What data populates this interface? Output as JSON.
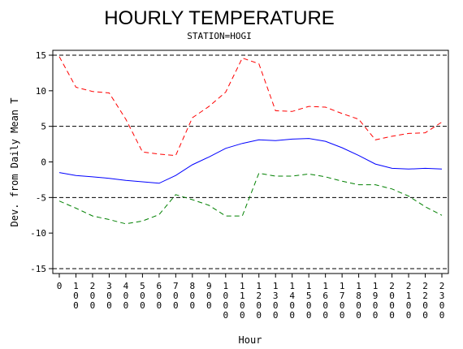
{
  "chart_data": {
    "type": "line",
    "title": "HOURLY TEMPERATURE",
    "subtitle": "STATION=HOGI",
    "xlabel": "Hour",
    "ylabel": "Dev. from Daily Mean T",
    "xlim": [
      0,
      2300
    ],
    "ylim": [
      -15,
      15
    ],
    "x": [
      0,
      100,
      200,
      300,
      400,
      500,
      600,
      700,
      800,
      900,
      1000,
      1100,
      1200,
      1300,
      1400,
      1500,
      1600,
      1700,
      1800,
      1900,
      2000,
      2100,
      2200,
      2300
    ],
    "x_tick_labels": [
      "0",
      "100",
      "200",
      "300",
      "400",
      "500",
      "600",
      "700",
      "800",
      "900",
      "1000",
      "1100",
      "1200",
      "1300",
      "1400",
      "1500",
      "1600",
      "1700",
      "1800",
      "1900",
      "2000",
      "2100",
      "2200",
      "2300"
    ],
    "y_ticks": [
      -15,
      -10,
      -5,
      0,
      5,
      10,
      15
    ],
    "y_tick_labels": [
      "-15",
      "-10",
      "-5",
      "0",
      "5",
      "10",
      "15"
    ],
    "reference_lines": [
      15,
      5,
      -5,
      -15
    ],
    "series": [
      {
        "color": "#ff0000",
        "style": "dashed",
        "values": [
          14.8,
          10.5,
          9.9,
          9.7,
          6.0,
          1.4,
          1.1,
          0.9,
          6.2,
          7.8,
          9.8,
          14.6,
          13.8,
          7.2,
          7.1,
          7.8,
          7.7,
          6.8,
          6.0,
          3.1,
          3.6,
          4.0,
          4.1,
          5.6
        ]
      },
      {
        "color": "#0000ff",
        "style": "solid",
        "values": [
          -1.5,
          -1.9,
          -2.1,
          -2.3,
          -2.6,
          -2.8,
          -3.0,
          -1.9,
          -0.4,
          0.7,
          1.9,
          2.6,
          3.1,
          3.0,
          3.2,
          3.3,
          2.9,
          2.0,
          0.9,
          -0.3,
          -0.9,
          -1.0,
          -0.9,
          -1.0
        ]
      },
      {
        "color": "#008000",
        "style": "dashed",
        "values": [
          -5.5,
          -6.5,
          -7.6,
          -8.1,
          -8.7,
          -8.3,
          -7.4,
          -4.6,
          -5.3,
          -6.1,
          -7.6,
          -7.6,
          -1.6,
          -2.0,
          -2.0,
          -1.7,
          -2.1,
          -2.7,
          -3.2,
          -3.2,
          -3.8,
          -4.8,
          -6.3,
          -7.5
        ]
      }
    ]
  }
}
